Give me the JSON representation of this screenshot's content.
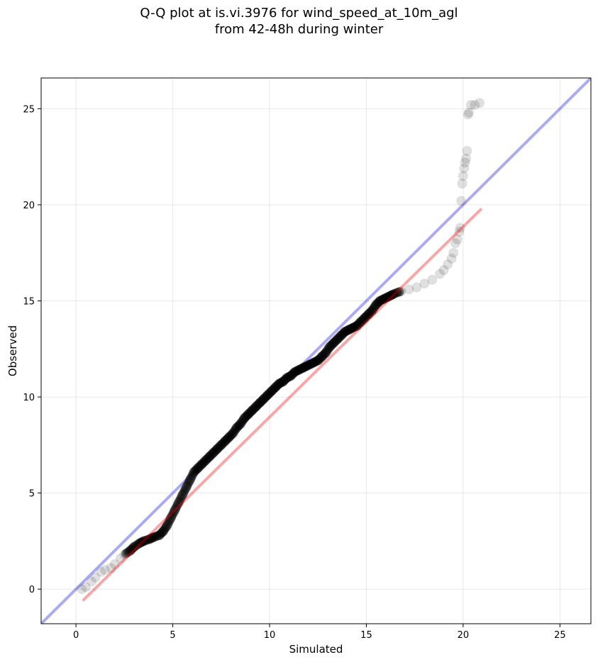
{
  "chart_data": {
    "type": "scatter",
    "title": "Q-Q plot at is.vi.3976 for wind_speed_at_10m_agl",
    "subtitle": "from 42-48h during winter",
    "xlabel": "Simulated",
    "ylabel": "Observed",
    "xlim": [
      -1.8,
      26.6
    ],
    "ylim": [
      -1.8,
      26.6
    ],
    "xticks": [
      0,
      5,
      10,
      15,
      20,
      25
    ],
    "yticks": [
      0,
      5,
      10,
      15,
      20,
      25
    ],
    "grid": true,
    "colors": {
      "points": "#000000",
      "identity_line": "#0000dd",
      "fit_line": "#ee0000"
    },
    "identity_line": {
      "x": [
        -1.8,
        26.6
      ],
      "y": [
        -1.8,
        26.6
      ]
    },
    "fit_line": {
      "x": [
        0.35,
        20.95
      ],
      "y": [
        -0.6,
        19.8
      ]
    },
    "series": [
      {
        "x": [
          0.3,
          0.5,
          0.8,
          1.0,
          1.3,
          1.5,
          1.8,
          2.0,
          2.3,
          2.5,
          2.8,
          3.0,
          3.3,
          3.5,
          3.8,
          4.0,
          4.3,
          4.5,
          4.7,
          4.9,
          5.1,
          5.3,
          5.5,
          5.7,
          5.9,
          6.1,
          6.3,
          6.5,
          6.7,
          6.9,
          7.1,
          7.3,
          7.5,
          7.7,
          7.9,
          8.1,
          8.3,
          8.5,
          8.7,
          8.9,
          9.1,
          9.3,
          9.5,
          9.7,
          9.9,
          10.1,
          10.3,
          10.5,
          10.7,
          10.9,
          11.1,
          11.3,
          11.5,
          11.7,
          11.9,
          12.1,
          12.3,
          12.5,
          12.7,
          12.9,
          13.1,
          13.3,
          13.5,
          13.7,
          13.9,
          14.1,
          14.3,
          14.5,
          14.7,
          14.9,
          15.1,
          15.3,
          15.5,
          15.7,
          15.9,
          16.1,
          16.3,
          16.5,
          16.8,
          17.2,
          17.6,
          18.0,
          18.4,
          18.8,
          19.0,
          19.2,
          19.4,
          19.5,
          19.6,
          19.7,
          19.8,
          19.85,
          19.9,
          19.95,
          20.0,
          20.05,
          20.1,
          20.15,
          20.2,
          20.25,
          20.3,
          20.4,
          20.6,
          20.85
        ],
        "y": [
          0.0,
          0.1,
          0.4,
          0.6,
          0.9,
          1.0,
          1.1,
          1.3,
          1.6,
          1.8,
          2.0,
          2.2,
          2.4,
          2.5,
          2.6,
          2.7,
          2.8,
          3.0,
          3.3,
          3.7,
          4.1,
          4.5,
          4.9,
          5.3,
          5.7,
          6.1,
          6.3,
          6.5,
          6.7,
          6.9,
          7.1,
          7.3,
          7.5,
          7.7,
          7.9,
          8.1,
          8.4,
          8.6,
          8.9,
          9.1,
          9.3,
          9.5,
          9.7,
          9.9,
          10.1,
          10.3,
          10.5,
          10.7,
          10.8,
          11.0,
          11.1,
          11.3,
          11.4,
          11.5,
          11.6,
          11.7,
          11.8,
          11.9,
          12.1,
          12.3,
          12.6,
          12.8,
          13.0,
          13.2,
          13.4,
          13.5,
          13.6,
          13.7,
          13.9,
          14.1,
          14.3,
          14.5,
          14.8,
          15.0,
          15.1,
          15.2,
          15.3,
          15.4,
          15.5,
          15.6,
          15.7,
          15.9,
          16.1,
          16.4,
          16.6,
          16.9,
          17.2,
          17.5,
          18.0,
          18.2,
          18.6,
          18.8,
          20.2,
          21.1,
          21.5,
          21.9,
          22.2,
          22.4,
          22.8,
          24.7,
          24.8,
          25.2,
          25.2,
          25.3
        ]
      }
    ]
  }
}
